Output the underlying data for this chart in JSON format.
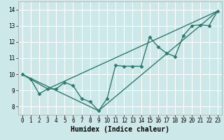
{
  "title": "",
  "xlabel": "Humidex (Indice chaleur)",
  "bg_color": "#cce8e8",
  "grid_color": "#ffffff",
  "line_color": "#2d7a6e",
  "xlim": [
    -0.5,
    23.5
  ],
  "ylim": [
    7.5,
    14.5
  ],
  "xticks": [
    0,
    1,
    2,
    3,
    4,
    5,
    6,
    7,
    8,
    9,
    10,
    11,
    12,
    13,
    14,
    15,
    16,
    17,
    18,
    19,
    20,
    21,
    22,
    23
  ],
  "yticks": [
    8,
    9,
    10,
    11,
    12,
    13,
    14
  ],
  "line1_x": [
    0,
    1,
    2,
    3,
    4,
    5,
    6,
    7,
    8,
    9,
    10,
    11,
    12,
    13,
    14,
    15,
    16,
    17,
    18,
    19,
    20,
    21,
    22,
    23
  ],
  "line1_y": [
    10.0,
    9.7,
    8.8,
    9.1,
    9.1,
    9.5,
    9.3,
    8.5,
    8.3,
    7.75,
    8.5,
    10.55,
    10.5,
    10.5,
    10.5,
    12.3,
    11.7,
    11.3,
    11.1,
    12.4,
    13.0,
    13.05,
    13.0,
    13.9
  ],
  "line2_x": [
    0,
    3,
    23
  ],
  "line2_y": [
    10.0,
    9.1,
    13.9
  ],
  "line3_x": [
    0,
    9,
    23
  ],
  "line3_y": [
    10.0,
    7.75,
    13.9
  ],
  "marker": "D",
  "marker_size": 2.5,
  "line_width": 1.0,
  "tick_labelsize": 5.5,
  "xlabel_fontsize": 7
}
